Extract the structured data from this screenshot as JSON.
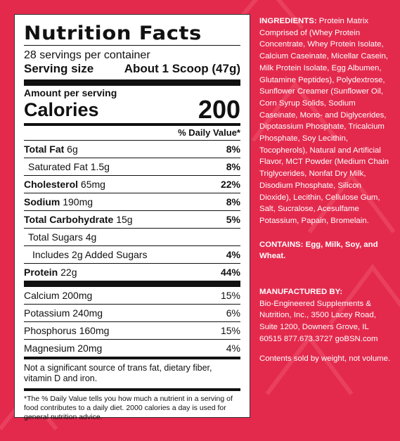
{
  "label": {
    "title": "Nutrition Facts",
    "servings": "28 servings per container",
    "serving_size_label": "Serving size",
    "serving_size_value": "About 1 Scoop (47g)",
    "amount_per_serving": "Amount per serving",
    "calories_label": "Calories",
    "calories_value": "200",
    "dv_header": "% Daily Value*",
    "rows": [
      {
        "bold": "Total Fat",
        "name": " 6g",
        "pct": "8%"
      },
      {
        "bold": "",
        "name": "Saturated Fat 1.5g",
        "pct": "8%"
      },
      {
        "bold": "Cholesterol",
        "name": " 65mg",
        "pct": "22%"
      },
      {
        "bold": "Sodium",
        "name": " 190mg",
        "pct": "8%"
      },
      {
        "bold": "Total Carbohydrate",
        "name": " 15g",
        "pct": "5%"
      },
      {
        "bold": "",
        "name": "Total Sugars 4g",
        "pct": ""
      },
      {
        "bold": "",
        "name": "Includes 2g Added Sugars",
        "pct": "4%"
      },
      {
        "bold": "Protein",
        "name": " 22g",
        "pct": "44%"
      }
    ],
    "minerals": [
      {
        "name": "Calcium 200mg",
        "pct": "15%"
      },
      {
        "name": "Potassium 240mg",
        "pct": "6%"
      },
      {
        "name": "Phosphorus 160mg",
        "pct": "15%"
      },
      {
        "name": "Magnesium 20mg",
        "pct": "4%"
      }
    ],
    "not_significant": "Not a significant source of trans fat, dietary fiber, vitamin D and iron.",
    "footnote": "*The % Daily Value tells you how much a nutrient in a serving of food contributes to a daily diet. 2000 calories a day is used for general nutrition advice."
  },
  "ingredients": {
    "heading": "INGREDIENTS:",
    "text": " Protein Matrix Comprised of (Whey Protein Concentrate, Whey Protein Isolate, Calcium Caseinate, Micellar Casein, Milk Protein Isolate, Egg Albumen, Glutamine Peptides), Polydextrose, Sunflower Creamer (Sunflower Oil, Corn Syrup Solids, Sodium Caseinate, Mono- and Diglycerides, Dipotassium Phosphate, Tricalcium Phosphate, Soy Lecithin, Tocopherols), Natural and Artificial Flavor, MCT Powder (Medium Chain Triglycerides, Nonfat Dry Milk, Disodium Phosphate, Silicon Dioxide), Lecithin, Cellulose Gum, Salt, Sucralose, Acesulfame Potassium, Papain, Bromelain."
  },
  "contains": {
    "heading": "CONTAINS:",
    "text": " Egg, Milk, Soy, and Wheat."
  },
  "manufacturer": {
    "heading": "MANUFACTURED BY:",
    "text": "Bio-Engineered Supplements & Nutrition, Inc., 3500 Lacey Road, Suite 1200, Downers Grove, IL 60515 877.673.3727 goBSN.com"
  },
  "weight_note": "Contents sold by weight, not volume.",
  "colors": {
    "background": "#e32a4d",
    "pattern": "#ec4a66",
    "label_bg": "#ffffff",
    "text_dark": "#111111",
    "text_light": "#ffffff"
  }
}
